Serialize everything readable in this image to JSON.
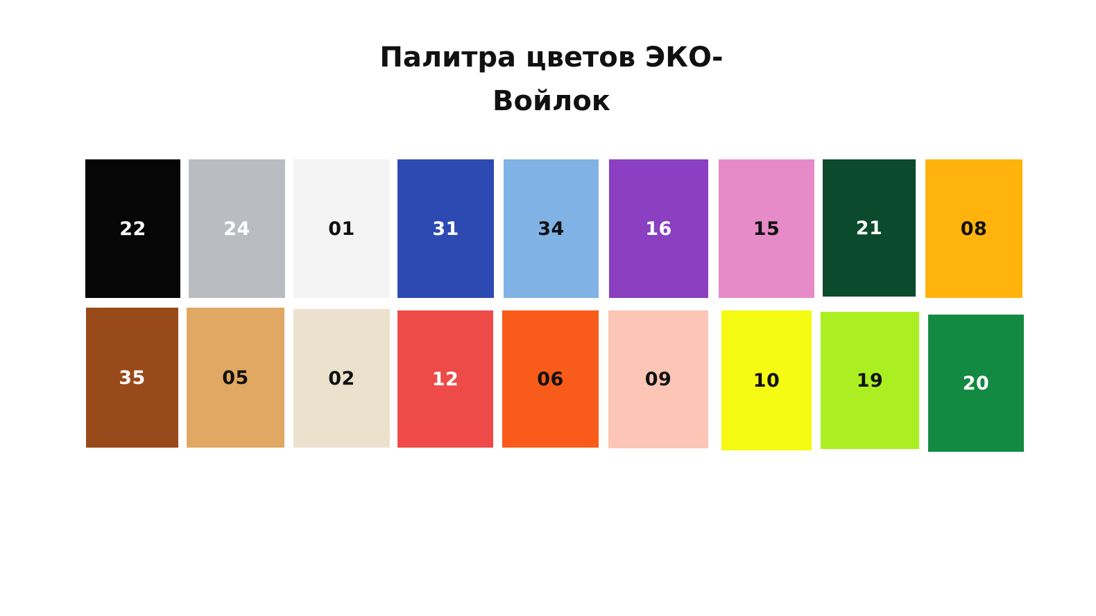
{
  "title": {
    "line1": "Палитра цветов ЭКО-",
    "line2": "Войлок"
  },
  "swatches": [
    {
      "number": "22",
      "color": "#060606",
      "text_color": "#ffffff"
    },
    {
      "number": "24",
      "color": "#b9bdc1",
      "text_color": "#ffffff"
    },
    {
      "number": "01",
      "color": "#f3f3f3",
      "text_color": "#111111"
    },
    {
      "number": "31",
      "color": "#2c4ab2",
      "text_color": "#ffffff"
    },
    {
      "number": "34",
      "color": "#80b2e6",
      "text_color": "#111111"
    },
    {
      "number": "16",
      "color": "#8a40c0",
      "text_color": "#ffffff"
    },
    {
      "number": "15",
      "color": "#e68ac8",
      "text_color": "#111111"
    },
    {
      "number": "21",
      "color": "#0b4a2c",
      "text_color": "#ffffff"
    },
    {
      "number": "08",
      "color": "#ffb30c",
      "text_color": "#111111"
    },
    {
      "number": "35",
      "color": "#994a1a",
      "text_color": "#ffffff"
    },
    {
      "number": "05",
      "color": "#e0a862",
      "text_color": "#111111"
    },
    {
      "number": "02",
      "color": "#ece1cd",
      "text_color": "#111111"
    },
    {
      "number": "12",
      "color": "#ee4b48",
      "text_color": "#ffffff"
    },
    {
      "number": "06",
      "color": "#f85b1a",
      "text_color": "#111111"
    },
    {
      "number": "09",
      "color": "#fcc5b5",
      "text_color": "#111111"
    },
    {
      "number": "10",
      "color": "#f4fa12",
      "text_color": "#111111"
    },
    {
      "number": "19",
      "color": "#abef22",
      "text_color": "#111111"
    },
    {
      "number": "20",
      "color": "#138a42",
      "text_color": "#ffffff"
    }
  ]
}
